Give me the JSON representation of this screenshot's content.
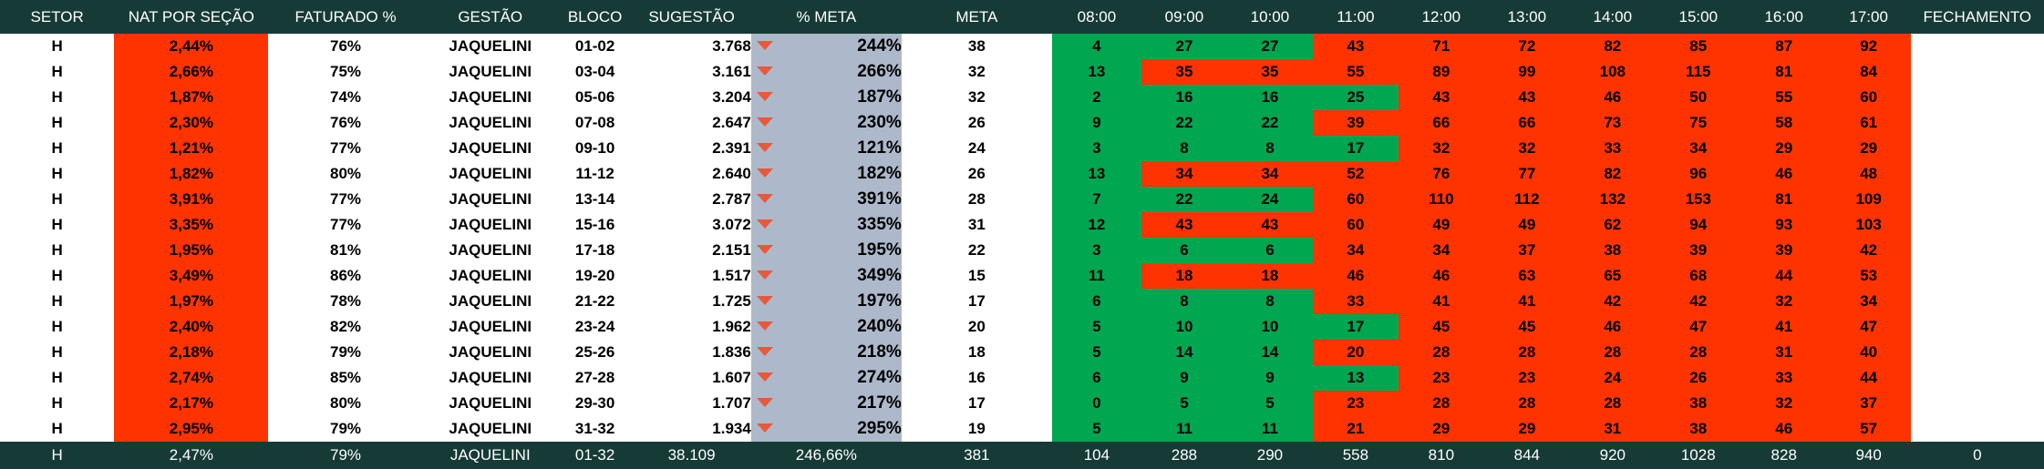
{
  "headers": {
    "setor": "SETOR",
    "nat": "NAT POR SEÇÃO",
    "faturado": "FATURADO %",
    "gestao": "GESTÃO",
    "bloco": "BLOCO",
    "sugestao": "SUGESTÃO",
    "pct_meta": "% META",
    "meta": "META",
    "hours": [
      "08:00",
      "09:00",
      "10:00",
      "11:00",
      "12:00",
      "13:00",
      "14:00",
      "15:00",
      "16:00",
      "17:00"
    ],
    "fechamento": "FECHAMENTO"
  },
  "rows": [
    {
      "setor": "H",
      "nat": "2,44%",
      "faturado": "76%",
      "gestao": "JAQUELINI",
      "bloco": "01-02",
      "sugestao": "3.768",
      "pct_meta": "244%",
      "meta": "38",
      "hours": [
        "4",
        "27",
        "27",
        "43",
        "71",
        "72",
        "82",
        "85",
        "87",
        "92"
      ],
      "fechamento": ""
    },
    {
      "setor": "H",
      "nat": "2,66%",
      "faturado": "75%",
      "gestao": "JAQUELINI",
      "bloco": "03-04",
      "sugestao": "3.161",
      "pct_meta": "266%",
      "meta": "32",
      "hours": [
        "13",
        "35",
        "35",
        "55",
        "89",
        "99",
        "108",
        "115",
        "81",
        "84"
      ],
      "fechamento": ""
    },
    {
      "setor": "H",
      "nat": "1,87%",
      "faturado": "74%",
      "gestao": "JAQUELINI",
      "bloco": "05-06",
      "sugestao": "3.204",
      "pct_meta": "187%",
      "meta": "32",
      "hours": [
        "2",
        "16",
        "16",
        "25",
        "43",
        "43",
        "46",
        "50",
        "55",
        "60"
      ],
      "fechamento": ""
    },
    {
      "setor": "H",
      "nat": "2,30%",
      "faturado": "76%",
      "gestao": "JAQUELINI",
      "bloco": "07-08",
      "sugestao": "2.647",
      "pct_meta": "230%",
      "meta": "26",
      "hours": [
        "9",
        "22",
        "22",
        "39",
        "66",
        "66",
        "73",
        "75",
        "58",
        "61"
      ],
      "fechamento": ""
    },
    {
      "setor": "H",
      "nat": "1,21%",
      "faturado": "77%",
      "gestao": "JAQUELINI",
      "bloco": "09-10",
      "sugestao": "2.391",
      "pct_meta": "121%",
      "meta": "24",
      "hours": [
        "3",
        "8",
        "8",
        "17",
        "32",
        "32",
        "33",
        "34",
        "29",
        "29"
      ],
      "fechamento": ""
    },
    {
      "setor": "H",
      "nat": "1,82%",
      "faturado": "80%",
      "gestao": "JAQUELINI",
      "bloco": "11-12",
      "sugestao": "2.640",
      "pct_meta": "182%",
      "meta": "26",
      "hours": [
        "13",
        "34",
        "34",
        "52",
        "76",
        "77",
        "82",
        "96",
        "46",
        "48"
      ],
      "fechamento": ""
    },
    {
      "setor": "H",
      "nat": "3,91%",
      "faturado": "77%",
      "gestao": "JAQUELINI",
      "bloco": "13-14",
      "sugestao": "2.787",
      "pct_meta": "391%",
      "meta": "28",
      "hours": [
        "7",
        "22",
        "24",
        "60",
        "110",
        "112",
        "132",
        "153",
        "81",
        "109"
      ],
      "fechamento": ""
    },
    {
      "setor": "H",
      "nat": "3,35%",
      "faturado": "77%",
      "gestao": "JAQUELINI",
      "bloco": "15-16",
      "sugestao": "3.072",
      "pct_meta": "335%",
      "meta": "31",
      "hours": [
        "12",
        "43",
        "43",
        "60",
        "49",
        "49",
        "62",
        "94",
        "93",
        "103"
      ],
      "fechamento": ""
    },
    {
      "setor": "H",
      "nat": "1,95%",
      "faturado": "81%",
      "gestao": "JAQUELINI",
      "bloco": "17-18",
      "sugestao": "2.151",
      "pct_meta": "195%",
      "meta": "22",
      "hours": [
        "3",
        "6",
        "6",
        "34",
        "34",
        "37",
        "38",
        "39",
        "39",
        "42"
      ],
      "fechamento": ""
    },
    {
      "setor": "H",
      "nat": "3,49%",
      "faturado": "86%",
      "gestao": "JAQUELINI",
      "bloco": "19-20",
      "sugestao": "1.517",
      "pct_meta": "349%",
      "meta": "15",
      "hours": [
        "11",
        "18",
        "18",
        "46",
        "46",
        "63",
        "65",
        "68",
        "44",
        "53"
      ],
      "fechamento": ""
    },
    {
      "setor": "H",
      "nat": "1,97%",
      "faturado": "78%",
      "gestao": "JAQUELINI",
      "bloco": "21-22",
      "sugestao": "1.725",
      "pct_meta": "197%",
      "meta": "17",
      "hours": [
        "6",
        "8",
        "8",
        "33",
        "41",
        "41",
        "42",
        "42",
        "32",
        "34"
      ],
      "fechamento": ""
    },
    {
      "setor": "H",
      "nat": "2,40%",
      "faturado": "82%",
      "gestao": "JAQUELINI",
      "bloco": "23-24",
      "sugestao": "1.962",
      "pct_meta": "240%",
      "meta": "20",
      "hours": [
        "5",
        "10",
        "10",
        "17",
        "45",
        "45",
        "46",
        "47",
        "41",
        "47"
      ],
      "fechamento": ""
    },
    {
      "setor": "H",
      "nat": "2,18%",
      "faturado": "79%",
      "gestao": "JAQUELINI",
      "bloco": "25-26",
      "sugestao": "1.836",
      "pct_meta": "218%",
      "meta": "18",
      "hours": [
        "5",
        "14",
        "14",
        "20",
        "28",
        "28",
        "28",
        "28",
        "31",
        "40"
      ],
      "fechamento": ""
    },
    {
      "setor": "H",
      "nat": "2,74%",
      "faturado": "85%",
      "gestao": "JAQUELINI",
      "bloco": "27-28",
      "sugestao": "1.607",
      "pct_meta": "274%",
      "meta": "16",
      "hours": [
        "6",
        "9",
        "9",
        "13",
        "23",
        "23",
        "24",
        "26",
        "33",
        "44"
      ],
      "fechamento": ""
    },
    {
      "setor": "H",
      "nat": "2,17%",
      "faturado": "80%",
      "gestao": "JAQUELINI",
      "bloco": "29-30",
      "sugestao": "1.707",
      "pct_meta": "217%",
      "meta": "17",
      "hours": [
        "0",
        "5",
        "5",
        "23",
        "28",
        "28",
        "28",
        "38",
        "32",
        "37"
      ],
      "fechamento": ""
    },
    {
      "setor": "H",
      "nat": "2,95%",
      "faturado": "79%",
      "gestao": "JAQUELINI",
      "bloco": "31-32",
      "sugestao": "1.934",
      "pct_meta": "295%",
      "meta": "19",
      "hours": [
        "5",
        "11",
        "11",
        "21",
        "29",
        "29",
        "31",
        "38",
        "46",
        "57"
      ],
      "fechamento": ""
    }
  ],
  "hour_fill": [
    [
      "green",
      "green",
      "green",
      "red",
      "red",
      "red",
      "red",
      "red",
      "red",
      "red"
    ],
    [
      "green",
      "red",
      "red",
      "red",
      "red",
      "red",
      "red",
      "red",
      "red",
      "red"
    ],
    [
      "green",
      "green",
      "green",
      "green",
      "red",
      "red",
      "red",
      "red",
      "red",
      "red"
    ],
    [
      "green",
      "green",
      "green",
      "red",
      "red",
      "red",
      "red",
      "red",
      "red",
      "red"
    ],
    [
      "green",
      "green",
      "green",
      "green",
      "red",
      "red",
      "red",
      "red",
      "red",
      "red"
    ],
    [
      "green",
      "red",
      "red",
      "red",
      "red",
      "red",
      "red",
      "red",
      "red",
      "red"
    ],
    [
      "green",
      "green",
      "green",
      "red",
      "red",
      "red",
      "red",
      "red",
      "red",
      "red"
    ],
    [
      "green",
      "red",
      "red",
      "red",
      "red",
      "red",
      "red",
      "red",
      "red",
      "red"
    ],
    [
      "green",
      "green",
      "green",
      "red",
      "red",
      "red",
      "red",
      "red",
      "red",
      "red"
    ],
    [
      "green",
      "red",
      "red",
      "red",
      "red",
      "red",
      "red",
      "red",
      "red",
      "red"
    ],
    [
      "green",
      "green",
      "green",
      "red",
      "red",
      "red",
      "red",
      "red",
      "red",
      "red"
    ],
    [
      "green",
      "green",
      "green",
      "green",
      "red",
      "red",
      "red",
      "red",
      "red",
      "red"
    ],
    [
      "green",
      "green",
      "green",
      "red",
      "red",
      "red",
      "red",
      "red",
      "red",
      "red"
    ],
    [
      "green",
      "green",
      "green",
      "green",
      "red",
      "red",
      "red",
      "red",
      "red",
      "red"
    ],
    [
      "green",
      "green",
      "green",
      "red",
      "red",
      "red",
      "red",
      "red",
      "red",
      "red"
    ],
    [
      "green",
      "green",
      "green",
      "red",
      "red",
      "red",
      "red",
      "red",
      "red",
      "red"
    ]
  ],
  "footer": {
    "setor": "H",
    "nat": "2,47%",
    "faturado": "79%",
    "gestao": "JAQUELINI",
    "bloco": "01-32",
    "sugestao": "38.109",
    "pct_meta": "246,66%",
    "meta": "381",
    "hours": [
      "104",
      "288",
      "290",
      "558",
      "810",
      "844",
      "920",
      "1028",
      "828",
      "940"
    ],
    "fechamento": "0"
  },
  "colors": {
    "header_bg": "#163b36",
    "red": "#ff3300",
    "green": "#00a650",
    "pct_meta_bg": "#adb9ca",
    "down_arrow": "#e8593c"
  }
}
